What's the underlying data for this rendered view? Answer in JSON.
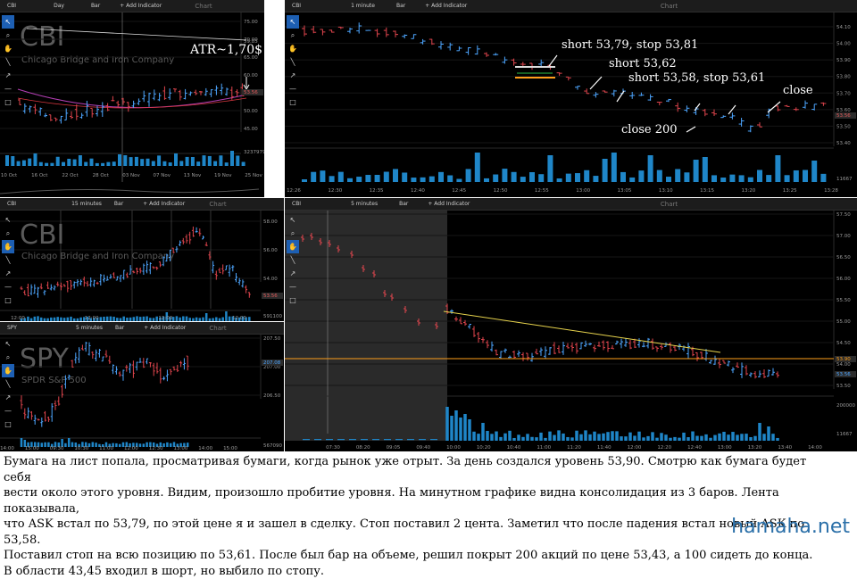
{
  "windows": {
    "daily": {
      "symbol": "CBI",
      "interval": "Day",
      "type": "Bar",
      "add": "+ Add Indicator",
      "title": "Chart",
      "wm_ticker": "CBI",
      "wm_name": "Chicago Bridge and Iron Company",
      "prices": [
        "75.00",
        "70.00",
        "65.00",
        "60.00",
        "55.00",
        "50.00",
        "45.00"
      ],
      "price_marks": [
        "59.85",
        "53.56",
        "3237979"
      ],
      "dates": [
        "10 Oct",
        "16 Oct",
        "22 Oct",
        "28 Oct",
        "03 Nov",
        "07 Nov",
        "13 Nov",
        "19 Nov",
        "25 Nov"
      ]
    },
    "m1": {
      "symbol": "CBI",
      "interval": "1 minute",
      "type": "Bar",
      "add": "+ Add Indicator",
      "title": "Chart",
      "prices": [
        "54.10",
        "54.00",
        "53.90",
        "53.80",
        "53.70",
        "53.60",
        "53.50",
        "53.40"
      ],
      "price_marks": [
        "53.56",
        "11667"
      ],
      "times": [
        "12:26",
        "12:30",
        "12:35",
        "12:40",
        "12:45",
        "12:50",
        "12:55",
        "13:00",
        "13:05",
        "13:10",
        "13:15",
        "13:20",
        "13:25",
        "13:28"
      ]
    },
    "m15": {
      "symbol": "CBI",
      "interval": "15 minutes",
      "type": "Bar",
      "add": "+ Add Indicator",
      "title": "Chart",
      "wm_ticker": "CBI",
      "wm_name": "Chicago Bridge and Iron Company",
      "prices": [
        "58.00",
        "56.00",
        "54.00"
      ],
      "price_marks": [
        "53.56",
        "591100"
      ],
      "times": [
        "12:00",
        "12:00",
        "12:00",
        "12:00"
      ]
    },
    "spy": {
      "symbol": "SPY",
      "interval": "5 minutes",
      "type": "Bar",
      "add": "+ Add Indicator",
      "title": "Chart",
      "wm_ticker": "SPY",
      "wm_name": "SPDR S&P 500",
      "prices": [
        "207.50",
        "207.00",
        "206.50"
      ],
      "price_marks": [
        "207.08",
        "567090"
      ],
      "times": [
        "14:00",
        "15:00",
        "09:30",
        "10:30",
        "11:00",
        "12:00",
        "12:30",
        "13:00",
        "14:00",
        "15:00"
      ]
    },
    "m5": {
      "symbol": "CBI",
      "interval": "5 minutes",
      "type": "Bar",
      "add": "+ Add Indicator",
      "title": "Chart",
      "prices": [
        "57.50",
        "57.00",
        "56.50",
        "56.00",
        "55.50",
        "55.00",
        "54.50",
        "54.00",
        "53.50"
      ],
      "price_marks": [
        "53.90",
        "53.56",
        "200000",
        "11667"
      ],
      "times": [
        "07:30",
        "08:20",
        "09:05",
        "09:40",
        "10:00",
        "10:20",
        "10:40",
        "11:00",
        "11:20",
        "11:40",
        "12:00",
        "12:20",
        "12:40",
        "13:00",
        "13:20",
        "13:40",
        "14:00"
      ]
    }
  },
  "annotations": {
    "atr": "ATR~1,70$",
    "short1": "short 53,79, stop 53,81",
    "short2": "short 53,62",
    "short3": "short 53,58, stop 53,61",
    "close": "close",
    "close200": "close 200"
  },
  "description": [
    "Бумага на лист попала, просматривая бумаги, когда рынок уже отрыт. За день создался уровень 53,90. Смотрю как бумага будет себя",
    "вести около этого уровня. Видим, произошло пробитие уровня. На минутном графике видна консолидация из 3 баров. Лента показывала,",
    "что ASK встал по 53,79, по этой цене я и зашел в сделку. Стоп поставил 2 цента. Заметил что после падения встал новый ASK по 53,58.",
    "Поставил стоп на всю позицию по 53,61. После был бар на объеме, решил покрыт 200 акций по цене 53,43, а 100 сидеть до конца.",
    "В области 43,45 входил в шорт, но выбило по стопу."
  ],
  "site": "hamaha.net",
  "colors": {
    "bar_up": "#4da6ff",
    "bar_down": "#e0454d",
    "volume": "#1f86c8",
    "level": "#ff9f1a",
    "trend": "#e8d44d",
    "ma": "#b43fb4"
  },
  "tools": [
    "pointer-icon",
    "zoom-icon",
    "hand-icon",
    "line-icon",
    "arrow-icon",
    "hline-icon",
    "rect-icon"
  ]
}
